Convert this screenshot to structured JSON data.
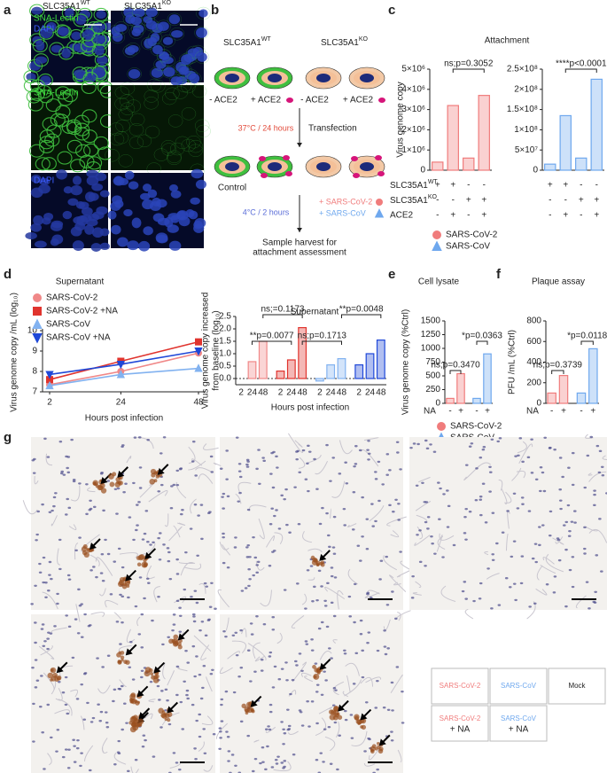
{
  "panel_labels": [
    "a",
    "b",
    "c",
    "d",
    "e",
    "f",
    "g"
  ],
  "microscopy": {
    "columns": [
      {
        "base": "SLC35A1",
        "sup": "WT"
      },
      {
        "base": "SLC35A1",
        "sup": "KO"
      }
    ],
    "row_labels": [
      [
        "SNA-Lectin",
        "DAPI"
      ],
      [
        "SNA-Lectin"
      ],
      [
        "DAPI"
      ]
    ]
  },
  "diagram": {
    "headers": [
      {
        "base": "SLC35A1",
        "sup": "WT"
      },
      {
        "base": "SLC35A1",
        "sup": "KO"
      }
    ],
    "conditions": [
      "- ACE2",
      "+ ACE2",
      "- ACE2",
      "+ ACE2"
    ],
    "step1": "37°C / 24 hours",
    "transfection": "Transfection",
    "control": "Control",
    "step2": "4°C / 2 hours",
    "viruses": [
      "+ SARS-CoV-2",
      "+ SARS-CoV"
    ],
    "harvest": [
      "Sample harvest for",
      "attachment assessment"
    ]
  },
  "attachment_table": {
    "rows": [
      {
        "label": {
          "base": "SLC35A1",
          "sup": "WT"
        },
        "marks": [
          "+",
          "+",
          "-",
          "-",
          "+",
          "+",
          "-",
          "-"
        ]
      },
      {
        "label": {
          "base": "SLC35A1",
          "sup": "KO"
        },
        "marks": [
          "-",
          "-",
          "+",
          "+",
          "-",
          "-",
          "+",
          "+"
        ]
      },
      {
        "label": "ACE2",
        "marks": [
          "-",
          "+",
          "-",
          "+",
          "-",
          "+",
          "-",
          "+"
        ]
      }
    ]
  },
  "chart_data": [
    {
      "type": "bar",
      "title": "Attachment",
      "ylabel": [
        "Virus genome copy"
      ],
      "series": [
        {
          "name": "SARS-CoV-2",
          "color": "#f07c7c",
          "marker": "circle",
          "values": [
            400000,
            3200000,
            600000,
            3700000
          ]
        }
      ],
      "ylim": [
        0,
        5000000
      ],
      "yticks": [
        0,
        {
          "value": 1000000,
          "label": "1×10⁶"
        },
        {
          "value": 2000000,
          "label": "2×10⁶"
        },
        {
          "value": 3000000,
          "label": "3×10⁶"
        },
        {
          "value": 4000000,
          "label": "4×10⁶"
        },
        {
          "value": 5000000,
          "label": "5×10⁶"
        }
      ],
      "annotations": [
        "ns;p=0.3052"
      ]
    },
    {
      "type": "bar",
      "series": [
        {
          "name": "SARS-CoV",
          "color": "#6fa8ee",
          "marker": "triangle",
          "values": [
            15000000,
            135000000,
            30000000,
            225000000
          ]
        }
      ],
      "ylim": [
        0,
        250000000
      ],
      "yticks": [
        0,
        {
          "value": 50000000,
          "label": "5×10⁷"
        },
        {
          "value": 100000000,
          "label": "1×10⁸"
        },
        {
          "value": 150000000,
          "label": "1.5×10⁸"
        },
        {
          "value": 200000000,
          "label": "2×10⁸"
        },
        {
          "value": 250000000,
          "label": "2.5×10⁸"
        }
      ],
      "annotations": [
        "****p<0.0001"
      ]
    },
    {
      "type": "line",
      "title": "Supernatant",
      "ylabel": [
        "Virus genome copy /mL (log₁₀)"
      ],
      "xlabel": "Hours post infection",
      "x": [
        2,
        24,
        48
      ],
      "xlim": [
        2,
        48
      ],
      "xticks": [
        2,
        24,
        48
      ],
      "ylim": [
        7,
        10
      ],
      "yticks": [
        7,
        8,
        9,
        10
      ],
      "series": [
        {
          "name": "SARS-CoV-2",
          "color": "#f08888",
          "marker": "circle",
          "values": [
            7.35,
            8.0,
            8.9
          ]
        },
        {
          "name": "SARS-CoV-2 +NA",
          "color": "#e0342e",
          "marker": "square",
          "values": [
            7.6,
            8.5,
            9.45
          ]
        },
        {
          "name": "SARS-CoV",
          "color": "#82b2f0",
          "marker": "triangle",
          "values": [
            7.3,
            7.85,
            8.15
          ]
        },
        {
          "name": "SARS-CoV +NA",
          "color": "#1f48d8",
          "marker": "triangle-down",
          "values": [
            7.85,
            8.35,
            9.0
          ]
        }
      ]
    },
    {
      "type": "bar",
      "title": "Supernatant",
      "ylabel": [
        "Virus genome copy increased",
        "from baseline (log₁₀)"
      ],
      "xlabel": "Hours post infection",
      "categories": [
        "2",
        "24",
        "48"
      ],
      "series": [
        {
          "name": "SARS-CoV-2",
          "color": "#f08888",
          "values": [
            0,
            0.68,
            1.5
          ]
        },
        {
          "name": "SARS-CoV-2 +NA",
          "color": "#e0342e",
          "values": [
            0.3,
            0.75,
            2.05
          ]
        },
        {
          "name": "SARS-CoV",
          "color": "#82b2f0",
          "values": [
            -0.1,
            0.55,
            0.8
          ]
        },
        {
          "name": "SARS-CoV +NA",
          "color": "#1f48d8",
          "values": [
            0.55,
            1.0,
            1.55
          ]
        }
      ],
      "ylim": [
        -0.25,
        2.5
      ],
      "yticks": [
        {
          "value": 0,
          "label": "0.0"
        },
        0.5,
        {
          "value": 1,
          "label": "1.0"
        },
        1.5,
        {
          "value": 2,
          "label": "2.0"
        },
        2.5
      ],
      "annotations": [
        "ns;=0.1173",
        "**p=0.0077",
        "ns;p=0.1713",
        "**p=0.0048"
      ]
    },
    {
      "type": "bar",
      "title": "Cell lysate",
      "ylabel": [
        "Virus genome copy (%Ctrl)"
      ],
      "xlabel": "NA",
      "categories": [
        "-",
        "+"
      ],
      "series": [
        {
          "name": "SARS-CoV-2",
          "color": "#f07c7c",
          "marker": "circle",
          "values": [
            90,
            540
          ]
        },
        {
          "name": "SARS-CoV",
          "color": "#6fa8ee",
          "marker": "triangle",
          "values": [
            90,
            900
          ]
        }
      ],
      "ylim": [
        0,
        1500
      ],
      "yticks": [
        0,
        250,
        500,
        750,
        1000,
        1250,
        1500
      ],
      "annotations": [
        "ns;p=0.3470",
        "*p=0.0363"
      ]
    },
    {
      "type": "bar",
      "title": "Plaque assay",
      "ylabel": [
        "PFU /mL (%Ctrl)"
      ],
      "xlabel": "NA",
      "categories": [
        "-",
        "+"
      ],
      "series": [
        {
          "name": "SARS-CoV-2",
          "color": "#f07c7c",
          "values": [
            100,
            270
          ]
        },
        {
          "name": "SARS-CoV",
          "color": "#6fa8ee",
          "values": [
            100,
            530
          ]
        }
      ],
      "ylim": [
        0,
        800
      ],
      "yticks": [
        0,
        200,
        400,
        600,
        800
      ],
      "annotations": [
        "ns;p=0.3739",
        "*p=0.0118"
      ]
    }
  ],
  "ihc_legend": [
    {
      "name": "SARS-CoV-2",
      "color": "#f07c7c"
    },
    {
      "name": "SARS-CoV",
      "color": "#6fa8ee"
    },
    {
      "name": "Mock",
      "color": "#222222"
    },
    {
      "name": "SARS-CoV-2",
      "sub": "+ NA",
      "color": "#f07c7c"
    },
    {
      "name": "SARS-CoV",
      "sub": "+ NA",
      "color": "#6fa8ee"
    }
  ]
}
